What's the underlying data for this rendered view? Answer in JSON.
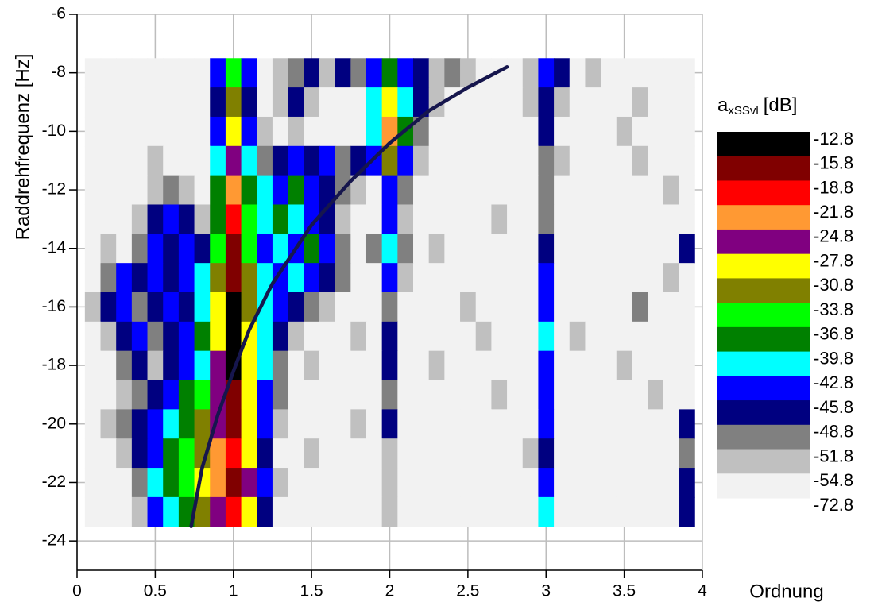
{
  "chart_data": {
    "type": "contour",
    "xlabel": "Ordnung",
    "ylabel": "Raddrehfrequenz [Hz]",
    "xlim": [
      0,
      4
    ],
    "ylim": [
      -25,
      -6
    ],
    "xticks": [
      0,
      0.5,
      1,
      1.5,
      2,
      2.5,
      3,
      3.5,
      4
    ],
    "yticks": [
      -6,
      -8,
      -10,
      -12,
      -14,
      -16,
      -18,
      -20,
      -22,
      -24
    ],
    "grid": true,
    "x": [
      0.1,
      0.2,
      0.3,
      0.4,
      0.5,
      0.6,
      0.7,
      0.8,
      0.9,
      1.0,
      1.1,
      1.2,
      1.3,
      1.4,
      1.5,
      1.6,
      1.7,
      1.8,
      1.9,
      2.0,
      2.1,
      2.2,
      2.3,
      2.4,
      2.5,
      2.6,
      2.7,
      2.8,
      2.9,
      3.0,
      3.1,
      3.2,
      3.3,
      3.4,
      3.5,
      3.6,
      3.7,
      3.8,
      3.9
    ],
    "y": [
      -8,
      -9,
      -10,
      -11,
      -12,
      -13,
      -14,
      -15,
      -16,
      -17,
      -18,
      -19,
      -20,
      -21,
      -22,
      -23
    ],
    "z": [
      [
        -60,
        -60,
        -60,
        -60,
        -60,
        -60,
        -60,
        -60,
        -44,
        -35,
        -44,
        -60,
        -53,
        -50,
        -47,
        -53,
        -47,
        -50,
        -44,
        -38,
        -44,
        -47,
        -53,
        -50,
        -53,
        -60,
        -60,
        -60,
        -53,
        -44,
        -47,
        -60,
        -53,
        -60,
        -60,
        -60,
        -60,
        -60,
        -60
      ],
      [
        -60,
        -60,
        -60,
        -60,
        -60,
        -60,
        -60,
        -60,
        -47,
        -32,
        -47,
        -60,
        -53,
        -47,
        -53,
        -60,
        -60,
        -60,
        -41,
        -29,
        -41,
        -47,
        -53,
        -60,
        -60,
        -60,
        -60,
        -60,
        -53,
        -47,
        -53,
        -60,
        -60,
        -60,
        -60,
        -53,
        -60,
        -60,
        -60
      ],
      [
        -60,
        -60,
        -60,
        -60,
        -60,
        -60,
        -60,
        -60,
        -44,
        -29,
        -44,
        -53,
        -60,
        -53,
        -60,
        -60,
        -60,
        -60,
        -41,
        -23,
        -38,
        -50,
        -60,
        -60,
        -60,
        -60,
        -60,
        -60,
        -60,
        -47,
        -60,
        -60,
        -60,
        -60,
        -53,
        -60,
        -60,
        -60,
        -60
      ],
      [
        -60,
        -60,
        -60,
        -60,
        -53,
        -60,
        -60,
        -60,
        -41,
        -26,
        -41,
        -50,
        -47,
        -44,
        -47,
        -44,
        -50,
        -47,
        -44,
        -32,
        -44,
        -53,
        -60,
        -60,
        -60,
        -60,
        -60,
        -60,
        -60,
        -50,
        -53,
        -60,
        -60,
        -60,
        -60,
        -53,
        -60,
        -60,
        -60
      ],
      [
        -60,
        -60,
        -60,
        -60,
        -53,
        -50,
        -53,
        -60,
        -38,
        -23,
        -38,
        -41,
        -44,
        -38,
        -44,
        -47,
        -50,
        -53,
        -60,
        -44,
        -50,
        -60,
        -60,
        -60,
        -60,
        -60,
        -60,
        -60,
        -60,
        -50,
        -60,
        -60,
        -60,
        -60,
        -60,
        -60,
        -60,
        -53,
        -60
      ],
      [
        -60,
        -60,
        -60,
        -53,
        -47,
        -44,
        -47,
        -53,
        -38,
        -20,
        -35,
        -41,
        -38,
        -41,
        -44,
        -47,
        -53,
        -60,
        -60,
        -44,
        -53,
        -60,
        -60,
        -60,
        -60,
        -60,
        -53,
        -60,
        -60,
        -50,
        -60,
        -60,
        -60,
        -60,
        -60,
        -60,
        -60,
        -60,
        -60
      ],
      [
        -60,
        -53,
        -60,
        -50,
        -44,
        -47,
        -44,
        -47,
        -35,
        -17,
        -35,
        -44,
        -41,
        -44,
        -38,
        -44,
        -50,
        -60,
        -50,
        -41,
        -50,
        -60,
        -53,
        -60,
        -60,
        -60,
        -60,
        -60,
        -60,
        -47,
        -60,
        -60,
        -60,
        -60,
        -60,
        -60,
        -60,
        -60,
        -47
      ],
      [
        -60,
        -50,
        -44,
        -47,
        -44,
        -47,
        -44,
        -41,
        -32,
        -17,
        -32,
        -41,
        -44,
        -41,
        -44,
        -47,
        -50,
        -60,
        -60,
        -44,
        -53,
        -60,
        -60,
        -60,
        -60,
        -60,
        -60,
        -60,
        -60,
        -44,
        -60,
        -60,
        -60,
        -60,
        -60,
        -60,
        -60,
        -53,
        -60
      ],
      [
        -53,
        -47,
        -44,
        -50,
        -47,
        -44,
        -47,
        -41,
        -29,
        -14,
        -32,
        -41,
        -44,
        -47,
        -50,
        -53,
        -60,
        -60,
        -60,
        -50,
        -60,
        -60,
        -60,
        -60,
        -53,
        -60,
        -60,
        -60,
        -60,
        -44,
        -60,
        -60,
        -60,
        -60,
        -60,
        -50,
        -60,
        -60,
        -60
      ],
      [
        -60,
        -53,
        -47,
        -44,
        -50,
        -47,
        -44,
        -38,
        -29,
        -14,
        -29,
        -41,
        -47,
        -53,
        -60,
        -60,
        -60,
        -53,
        -60,
        -47,
        -60,
        -60,
        -60,
        -60,
        -60,
        -53,
        -60,
        -60,
        -60,
        -41,
        -60,
        -53,
        -60,
        -60,
        -60,
        -60,
        -60,
        -60,
        -60
      ],
      [
        -60,
        -60,
        -50,
        -47,
        -53,
        -47,
        -44,
        -41,
        -26,
        -14,
        -29,
        -41,
        -50,
        -60,
        -53,
        -60,
        -60,
        -60,
        -60,
        -47,
        -60,
        -60,
        -53,
        -60,
        -60,
        -60,
        -60,
        -60,
        -60,
        -44,
        -60,
        -60,
        -60,
        -60,
        -53,
        -60,
        -60,
        -60,
        -60
      ],
      [
        -60,
        -60,
        -53,
        -50,
        -47,
        -44,
        -38,
        -35,
        -26,
        -17,
        -29,
        -44,
        -50,
        -60,
        -60,
        -60,
        -60,
        -60,
        -60,
        -50,
        -60,
        -60,
        -60,
        -60,
        -60,
        -60,
        -53,
        -60,
        -60,
        -44,
        -60,
        -60,
        -60,
        -60,
        -60,
        -60,
        -53,
        -60,
        -60
      ],
      [
        -60,
        -53,
        -50,
        -47,
        -44,
        -41,
        -38,
        -32,
        -26,
        -17,
        -29,
        -44,
        -53,
        -60,
        -60,
        -60,
        -60,
        -53,
        -60,
        -47,
        -60,
        -60,
        -60,
        -60,
        -60,
        -60,
        -60,
        -60,
        -60,
        -44,
        -60,
        -60,
        -60,
        -60,
        -60,
        -60,
        -60,
        -60,
        -47
      ],
      [
        -60,
        -60,
        -53,
        -47,
        -44,
        -38,
        -35,
        -32,
        -23,
        -20,
        -29,
        -47,
        -60,
        -60,
        -53,
        -60,
        -60,
        -60,
        -60,
        -53,
        -60,
        -60,
        -60,
        -60,
        -60,
        -60,
        -60,
        -60,
        -53,
        -47,
        -60,
        -60,
        -60,
        -60,
        -60,
        -60,
        -60,
        -60,
        -50
      ],
      [
        -60,
        -60,
        -60,
        -50,
        -41,
        -38,
        -35,
        -29,
        -23,
        -17,
        -26,
        -44,
        -53,
        -60,
        -60,
        -60,
        -60,
        -60,
        -60,
        -53,
        -60,
        -60,
        -60,
        -60,
        -60,
        -60,
        -60,
        -60,
        -60,
        -44,
        -60,
        -60,
        -60,
        -60,
        -60,
        -60,
        -60,
        -60,
        -47
      ],
      [
        -60,
        -60,
        -60,
        -53,
        -44,
        -41,
        -38,
        -32,
        -26,
        -20,
        -29,
        -47,
        -60,
        -60,
        -60,
        -60,
        -60,
        -60,
        -60,
        -53,
        -60,
        -60,
        -60,
        -60,
        -60,
        -60,
        -60,
        -60,
        -60,
        -41,
        -60,
        -60,
        -60,
        -60,
        -60,
        -60,
        -60,
        -60,
        -47
      ]
    ],
    "colorbar": {
      "title": "a",
      "title_sub": "xSSvl",
      "title_unit": "[dB]",
      "levels": [
        -12.8,
        -15.8,
        -18.8,
        -21.8,
        -24.8,
        -27.8,
        -30.8,
        -33.8,
        -36.8,
        -39.8,
        -42.8,
        -45.8,
        -48.8,
        -51.8,
        -54.8,
        -72.8
      ],
      "colors": [
        "#000000",
        "#800000",
        "#ff0000",
        "#ff9933",
        "#800080",
        "#ffff00",
        "#808000",
        "#00ff00",
        "#008000",
        "#00ffff",
        "#0000ff",
        "#000080",
        "#808080",
        "#c0c0c0",
        "#f2f2f2"
      ]
    },
    "overlay": {
      "type": "line",
      "color": "#16164d",
      "x": [
        0.73,
        0.8,
        0.9,
        1.0,
        1.1,
        1.25,
        1.5,
        1.75,
        2.0,
        2.25,
        2.5,
        2.75
      ],
      "y": [
        -23.5,
        -21.5,
        -19.7,
        -18.2,
        -16.8,
        -15.2,
        -13.2,
        -11.7,
        -10.4,
        -9.3,
        -8.5,
        -7.8
      ]
    }
  }
}
